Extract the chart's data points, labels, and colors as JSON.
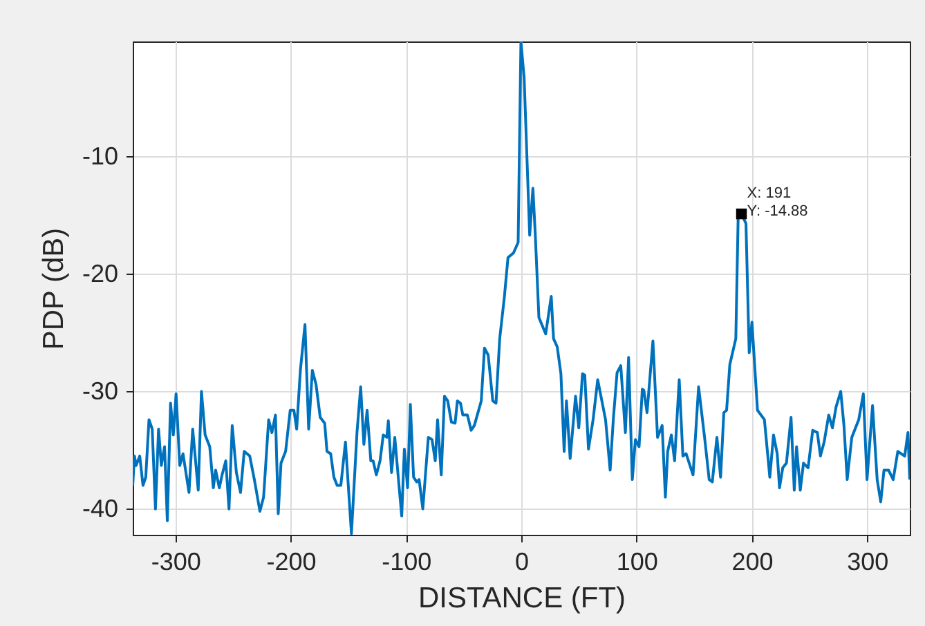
{
  "chart_data": {
    "type": "line",
    "xlabel": "DISTANCE (FT)",
    "ylabel": "PDP (dB)",
    "xlim": [
      -337,
      337
    ],
    "ylim": [
      -42.2,
      -0.2
    ],
    "xticks": [
      -300,
      -200,
      -100,
      0,
      100,
      200,
      300
    ],
    "yticks": [
      -40,
      -30,
      -20,
      -10
    ],
    "grid": true,
    "annotations": [
      {
        "text": "X: 191\nY: -14.88",
        "x": 191,
        "y": -14.88
      }
    ],
    "series": [
      {
        "color": "#0072bd",
        "x": [
          -337,
          -335.5,
          -334.1,
          -330.9,
          -328.1,
          -325.7,
          -322.9,
          -320.1,
          -317.3,
          -314.6,
          -312.2,
          -309.4,
          -307.0,
          -304.2,
          -301.8,
          -299.4,
          -296.2,
          -293.4,
          -288.2,
          -285.0,
          -280.2,
          -277.4,
          -274.2,
          -270.2,
          -267.1,
          -265.1,
          -261.9,
          -259.5,
          -256.3,
          -253.5,
          -250.7,
          -247.1,
          -243.5,
          -240.3,
          -235.5,
          -231.5,
          -226.7,
          -223.5,
          -219.1,
          -216.3,
          -213.2,
          -210.8,
          -208.4,
          -204.4,
          -200.4,
          -197.2,
          -194.8,
          -191.6,
          -187.6,
          -184.4,
          -181.2,
          -178.0,
          -174.4,
          -170.5,
          -168.5,
          -165.3,
          -162.5,
          -159.7,
          -156.5,
          -152.5,
          -147.3,
          -142.5,
          -139.3,
          -136.5,
          -133.7,
          -130.5,
          -128.5,
          -125.7,
          -122.5,
          -119.7,
          -116.6,
          -115.3,
          -112.5,
          -109.7,
          -106.5,
          -103.7,
          -101.4,
          -98.6,
          -96.2,
          -93.4,
          -90.6,
          -88.6,
          -85.4,
          -80.6,
          -77.4,
          -74.6,
          -72.6,
          -69.4,
          -66.6,
          -63.8,
          -60.6,
          -57.4,
          -55.4,
          -52.7,
          -50.7,
          -46.7,
          -43.5,
          -40.7,
          -34.7,
          -31.9,
          -28.7,
          -24.7,
          -21.9,
          -18.7,
          -14.7,
          -11.5,
          -6.7,
          -2.7,
          -0.3,
          2.5,
          7.3,
          10.1,
          12.1,
          15.3,
          21.2,
          26.0,
          28.0,
          31.2,
          34.4,
          37.2,
          39.2,
          42.4,
          47.1,
          49.9,
          53.1,
          55.1,
          58.3,
          62.3,
          66.3,
          69.9,
          73.1,
          77.1,
          79.9,
          83.1,
          86.3,
          90.3,
          93.1,
          96.3,
          99.0,
          102.2,
          105.0,
          106.3,
          109.1,
          114.2,
          118.2,
          122.2,
          125.0,
          127.0,
          130.2,
          133.0,
          137.0,
          140.2,
          143.0,
          149.0,
          153.8,
          159.0,
          163.0,
          165.7,
          169.7,
          172.9,
          175.7,
          178.1,
          180.9,
          186.1,
          188.1,
          191,
          194.9,
          197.7,
          200.1,
          204.9,
          210.9,
          215.6,
          218.8,
          222.0,
          224.0,
          226.8,
          230.0,
          234.0,
          236.8,
          238.8,
          242.0,
          244.8,
          248.8,
          252.8,
          256.8,
          259.5,
          262.7,
          266.7,
          269.9,
          273.1,
          277.1,
          279.9,
          282.7,
          286.7,
          292.7,
          296.7,
          299.9,
          304.7,
          308.7,
          311.8,
          314.6,
          318.6,
          322.6,
          326.6,
          332.6,
          335.4,
          337
        ],
        "values": [
          -38.0,
          -35.5,
          -36.3,
          -35.5,
          -38.0,
          -37.3,
          -32.4,
          -33.2,
          -40.0,
          -33.2,
          -36.3,
          -34.7,
          -41.0,
          -31.0,
          -33.7,
          -30.2,
          -36.3,
          -35.3,
          -38.6,
          -33.2,
          -38.4,
          -30.0,
          -33.7,
          -34.7,
          -38.2,
          -36.7,
          -38.2,
          -37.1,
          -35.9,
          -40.0,
          -32.9,
          -36.9,
          -38.6,
          -35.1,
          -35.5,
          -37.5,
          -40.2,
          -39.0,
          -32.4,
          -33.5,
          -32.0,
          -40.4,
          -36.1,
          -35.1,
          -31.6,
          -31.6,
          -33.2,
          -28.2,
          -24.3,
          -33.2,
          -28.2,
          -29.4,
          -32.2,
          -32.7,
          -35.1,
          -35.3,
          -37.3,
          -38.0,
          -38.0,
          -34.3,
          -42.1,
          -33.5,
          -29.6,
          -34.5,
          -31.6,
          -35.9,
          -35.9,
          -37.1,
          -35.9,
          -33.7,
          -33.9,
          -32.5,
          -36.9,
          -33.9,
          -37.5,
          -40.6,
          -34.9,
          -38.2,
          -31.1,
          -37.3,
          -37.7,
          -37.5,
          -40.0,
          -33.9,
          -34.1,
          -35.9,
          -32.4,
          -37.1,
          -30.4,
          -30.8,
          -32.6,
          -32.7,
          -30.8,
          -31.0,
          -32.0,
          -32.0,
          -33.3,
          -32.9,
          -30.8,
          -26.3,
          -26.9,
          -30.8,
          -31.0,
          -25.5,
          -22.0,
          -18.6,
          -18.2,
          -17.3,
          -0.2,
          -3.3,
          -16.7,
          -12.7,
          -16.5,
          -23.7,
          -25.1,
          -21.9,
          -25.5,
          -26.2,
          -28.5,
          -35.1,
          -30.8,
          -35.7,
          -30.4,
          -33.1,
          -28.5,
          -28.6,
          -34.9,
          -32.4,
          -29.0,
          -30.8,
          -32.4,
          -36.7,
          -32.3,
          -28.4,
          -27.8,
          -33.5,
          -27.1,
          -37.5,
          -34.1,
          -34.7,
          -29.8,
          -29.9,
          -31.8,
          -25.7,
          -33.9,
          -32.9,
          -39.0,
          -35.1,
          -33.7,
          -35.9,
          -29.0,
          -35.5,
          -35.3,
          -37.1,
          -29.6,
          -33.9,
          -37.5,
          -37.7,
          -33.9,
          -37.3,
          -31.8,
          -31.6,
          -27.7,
          -25.5,
          -15.3,
          -14.88,
          -15.7,
          -26.7,
          -24.1,
          -31.6,
          -32.4,
          -37.3,
          -33.7,
          -35.3,
          -38.2,
          -36.5,
          -36.1,
          -32.2,
          -38.4,
          -34.7,
          -38.4,
          -36.1,
          -36.5,
          -33.3,
          -33.5,
          -35.5,
          -34.3,
          -32.0,
          -33.1,
          -31.3,
          -30.0,
          -32.9,
          -37.5,
          -33.9,
          -32.4,
          -30.2,
          -37.5,
          -31.2,
          -37.5,
          -39.4,
          -36.7,
          -36.7,
          -37.5,
          -35.1,
          -35.5,
          -33.5,
          -37.5
        ]
      }
    ]
  }
}
